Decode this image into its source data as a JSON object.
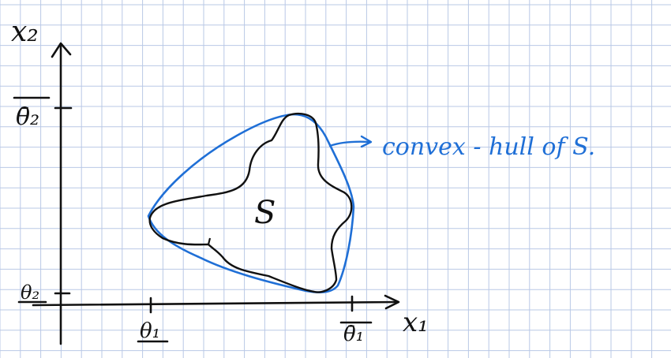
{
  "axes": {
    "x_label": "x₁",
    "y_label": "x₂",
    "x_ticks": [
      "θ₁",
      "θ̄₁"
    ],
    "y_ticks": [
      "θ̄₂",
      "θ₂"
    ]
  },
  "set_label": "S",
  "hull_annotation": "convex - hull of S.",
  "colors": {
    "grid": "#b9c8e6",
    "ink": "#111111",
    "hull": "#1f6fd6",
    "background": "#ffffff"
  }
}
